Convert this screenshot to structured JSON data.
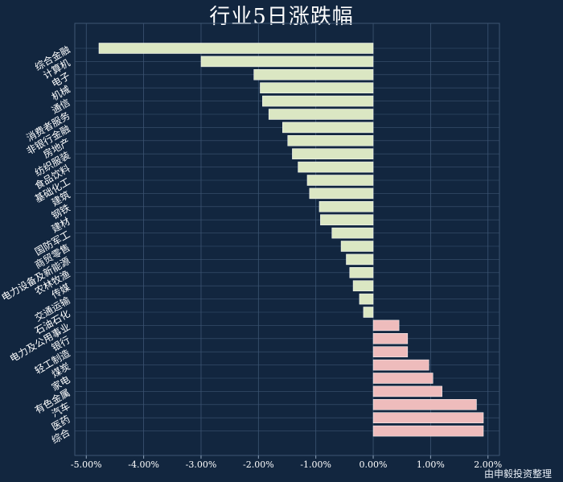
{
  "chart_data": {
    "type": "bar",
    "orientation": "horizontal",
    "title": "行业5日涨跌幅",
    "xlabel": "",
    "ylabel": "",
    "xlim": [
      -5.2,
      2.2
    ],
    "x_ticks": [
      -5.0,
      -4.0,
      -3.0,
      -2.0,
      -1.0,
      0.0,
      1.0,
      2.0
    ],
    "x_tick_labels": [
      "-5.00%",
      "-4.00%",
      "-3.00%",
      "-2.00%",
      "-1.00%",
      "0.00%",
      "1.00%",
      "2.00%"
    ],
    "grid": true,
    "categories": [
      "综合金融",
      "计算机",
      "电子",
      "机械",
      "通信",
      "消费者服务",
      "非银行金融",
      "房地产",
      "纺织服装",
      "食品饮料",
      "基础化工",
      "建筑",
      "钢铁",
      "建材",
      "国防军工",
      "商贸零售",
      "电力设备及新能源",
      "农林牧渔",
      "传媒",
      "交通运输",
      "石油石化",
      "电力及公用事业",
      "银行",
      "轻工制造",
      "煤炭",
      "家电",
      "有色金属",
      "汽车",
      "医药",
      "综合"
    ],
    "values": [
      -4.78,
      -3.0,
      -2.08,
      -1.97,
      -1.93,
      -1.82,
      -1.58,
      -1.49,
      -1.41,
      -1.31,
      -1.15,
      -1.11,
      -0.94,
      -0.92,
      -0.72,
      -0.56,
      -0.47,
      -0.41,
      -0.35,
      -0.24,
      -0.17,
      0.45,
      0.6,
      0.6,
      0.97,
      1.04,
      1.2,
      1.8,
      1.92,
      1.92
    ],
    "colors": {
      "negative": "#dbe7c3",
      "positive": "#eebcbc",
      "background": "#12263f",
      "grid": "#3d5573",
      "text": "#ffffff"
    }
  },
  "footer": {
    "source": "由申毅投资整理"
  }
}
